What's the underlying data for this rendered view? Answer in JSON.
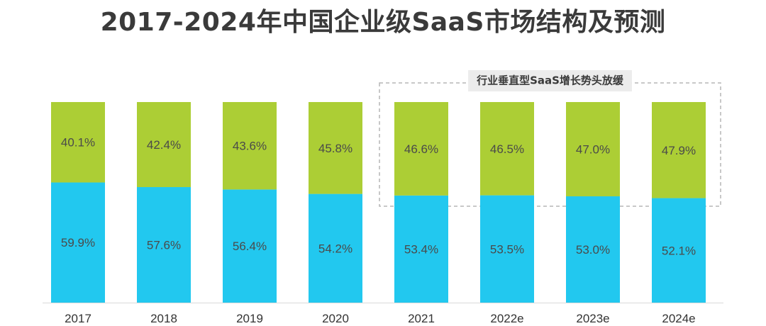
{
  "chart_data": {
    "type": "bar",
    "stacked": true,
    "percent_stacked": true,
    "title": "2017-2024年中国企业级SaaS市场结构及预测",
    "categories": [
      "2017",
      "2018",
      "2019",
      "2020",
      "2021",
      "2022e",
      "2023e",
      "2024e"
    ],
    "series": [
      {
        "values": [
          59.9,
          57.6,
          56.4,
          54.2,
          53.4,
          53.5,
          53.0,
          52.1
        ],
        "color": "#22c8ef"
      },
      {
        "values": [
          40.1,
          42.4,
          43.6,
          45.8,
          46.6,
          46.5,
          47.0,
          47.9
        ],
        "color": "#acce35"
      }
    ],
    "value_suffix": "%",
    "ylim": [
      0,
      100
    ],
    "legend": "none",
    "grid": false,
    "annotation": {
      "text": "行业垂直型SaaS增长势头放缓",
      "applies_to": [
        "2021",
        "2022e",
        "2023e",
        "2024e"
      ]
    }
  }
}
